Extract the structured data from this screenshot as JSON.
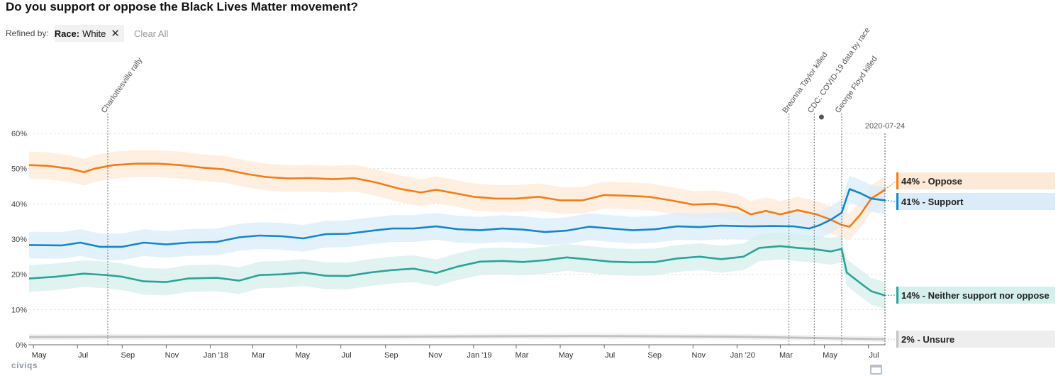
{
  "title": "Do you support or oppose the Black Lives Matter movement?",
  "refine": {
    "label": "Refined by:",
    "filter_key": "Race:",
    "filter_value": "White",
    "clear_label": "Clear All"
  },
  "brand": "civiqs",
  "chart_data": {
    "type": "line",
    "x_type": "date",
    "ylim": [
      0,
      60
    ],
    "yticks": [
      "0%",
      "10%",
      "20%",
      "30%",
      "40%",
      "50%",
      "60%"
    ],
    "xticks": [
      {
        "date": "2017-05-01",
        "label": "May"
      },
      {
        "date": "2017-07-01",
        "label": "Jul"
      },
      {
        "date": "2017-09-01",
        "label": "Sep"
      },
      {
        "date": "2017-11-01",
        "label": "Nov"
      },
      {
        "date": "2018-01-01",
        "label": "Jan '18"
      },
      {
        "date": "2018-03-01",
        "label": "Mar"
      },
      {
        "date": "2018-05-01",
        "label": "May"
      },
      {
        "date": "2018-07-01",
        "label": "Jul"
      },
      {
        "date": "2018-09-01",
        "label": "Sep"
      },
      {
        "date": "2018-11-01",
        "label": "Nov"
      },
      {
        "date": "2019-01-01",
        "label": "Jan '19"
      },
      {
        "date": "2019-03-01",
        "label": "Mar"
      },
      {
        "date": "2019-05-01",
        "label": "May"
      },
      {
        "date": "2019-07-01",
        "label": "Jul"
      },
      {
        "date": "2019-09-01",
        "label": "Sep"
      },
      {
        "date": "2019-11-01",
        "label": "Nov"
      },
      {
        "date": "2020-01-01",
        "label": "Jan '20"
      },
      {
        "date": "2020-03-01",
        "label": "Mar"
      },
      {
        "date": "2020-05-01",
        "label": "May"
      },
      {
        "date": "2020-07-01",
        "label": "Jul"
      }
    ],
    "annotations": [
      {
        "date": "2017-08-12",
        "label": "Charlottesville rally"
      },
      {
        "date": "2020-03-13",
        "label": "Breonna Taylor killed"
      },
      {
        "date": "2020-04-17",
        "label": "CDC: COVID-19 data by race"
      },
      {
        "date": "2020-05-25",
        "label": "George Floyd killed"
      }
    ],
    "current_date": "2020-07-24",
    "series": [
      {
        "name": "Oppose",
        "legend": "44% - Oppose",
        "color": "#f07d17",
        "band_color": "#fde9d7",
        "points": [
          [
            "2017-04-25",
            51
          ],
          [
            "2017-05-20",
            50.8
          ],
          [
            "2017-06-20",
            50
          ],
          [
            "2017-07-10",
            49
          ],
          [
            "2017-07-25",
            50
          ],
          [
            "2017-08-20",
            51
          ],
          [
            "2017-09-20",
            51.4
          ],
          [
            "2017-10-20",
            51.4
          ],
          [
            "2017-11-20",
            51
          ],
          [
            "2017-12-20",
            50.3
          ],
          [
            "2018-01-20",
            49.8
          ],
          [
            "2018-02-20",
            48.5
          ],
          [
            "2018-03-20",
            47.6
          ],
          [
            "2018-04-20",
            47.2
          ],
          [
            "2018-05-20",
            47.3
          ],
          [
            "2018-06-20",
            47
          ],
          [
            "2018-07-20",
            47.3
          ],
          [
            "2018-08-20",
            46
          ],
          [
            "2018-09-20",
            44.3
          ],
          [
            "2018-10-20",
            43.2
          ],
          [
            "2018-11-10",
            44
          ],
          [
            "2018-12-01",
            43.2
          ],
          [
            "2019-01-01",
            42
          ],
          [
            "2019-02-01",
            41.5
          ],
          [
            "2019-03-01",
            41.5
          ],
          [
            "2019-04-01",
            42
          ],
          [
            "2019-05-01",
            41
          ],
          [
            "2019-06-01",
            41
          ],
          [
            "2019-07-01",
            42.5
          ],
          [
            "2019-08-01",
            42.3
          ],
          [
            "2019-09-01",
            42
          ],
          [
            "2019-10-01",
            41
          ],
          [
            "2019-11-01",
            39.8
          ],
          [
            "2019-12-01",
            40
          ],
          [
            "2020-01-01",
            39
          ],
          [
            "2020-01-20",
            37
          ],
          [
            "2020-02-10",
            38
          ],
          [
            "2020-03-01",
            37
          ],
          [
            "2020-03-25",
            38.2
          ],
          [
            "2020-04-20",
            37
          ],
          [
            "2020-05-10",
            35.5
          ],
          [
            "2020-05-25",
            34
          ],
          [
            "2020-06-05",
            33.5
          ],
          [
            "2020-06-20",
            37
          ],
          [
            "2020-07-05",
            41.5
          ],
          [
            "2020-07-24",
            44
          ]
        ]
      },
      {
        "name": "Support",
        "legend": "41% - Support",
        "color": "#1785c8",
        "band_color": "#d9ecf8",
        "points": [
          [
            "2017-04-25",
            28.3
          ],
          [
            "2017-06-10",
            28.2
          ],
          [
            "2017-07-05",
            29
          ],
          [
            "2017-08-01",
            27.8
          ],
          [
            "2017-09-01",
            27.8
          ],
          [
            "2017-10-01",
            29
          ],
          [
            "2017-11-01",
            28.5
          ],
          [
            "2017-12-01",
            29
          ],
          [
            "2018-01-10",
            29.2
          ],
          [
            "2018-02-10",
            30.5
          ],
          [
            "2018-03-10",
            31
          ],
          [
            "2018-04-10",
            30.8
          ],
          [
            "2018-05-10",
            30.2
          ],
          [
            "2018-06-10",
            31.4
          ],
          [
            "2018-07-10",
            31.5
          ],
          [
            "2018-08-10",
            32.3
          ],
          [
            "2018-09-10",
            33
          ],
          [
            "2018-10-10",
            33
          ],
          [
            "2018-11-10",
            33.6
          ],
          [
            "2018-12-10",
            32.8
          ],
          [
            "2019-01-10",
            32.5
          ],
          [
            "2019-02-10",
            33
          ],
          [
            "2019-03-10",
            32.7
          ],
          [
            "2019-04-10",
            32
          ],
          [
            "2019-05-10",
            32.4
          ],
          [
            "2019-06-10",
            33.5
          ],
          [
            "2019-07-10",
            33
          ],
          [
            "2019-08-10",
            32.5
          ],
          [
            "2019-09-10",
            32.8
          ],
          [
            "2019-10-10",
            33.6
          ],
          [
            "2019-11-10",
            33.4
          ],
          [
            "2019-12-10",
            33.8
          ],
          [
            "2020-01-20",
            33.6
          ],
          [
            "2020-02-20",
            33.7
          ],
          [
            "2020-03-20",
            33.6
          ],
          [
            "2020-04-10",
            33
          ],
          [
            "2020-04-25",
            34
          ],
          [
            "2020-05-10",
            35.5
          ],
          [
            "2020-05-25",
            37.5
          ],
          [
            "2020-06-05",
            44.2
          ],
          [
            "2020-06-20",
            43
          ],
          [
            "2020-07-05",
            41.5
          ],
          [
            "2020-07-24",
            41
          ]
        ]
      },
      {
        "name": "Neither support nor oppose",
        "legend": "14% - Neither support nor oppose",
        "color": "#2aa39a",
        "band_color": "#d5efec",
        "points": [
          [
            "2017-04-25",
            18.8
          ],
          [
            "2017-06-01",
            19.3
          ],
          [
            "2017-07-10",
            20.2
          ],
          [
            "2017-08-10",
            19.8
          ],
          [
            "2017-09-01",
            19.3
          ],
          [
            "2017-10-01",
            18
          ],
          [
            "2017-11-01",
            17.8
          ],
          [
            "2017-12-01",
            18.8
          ],
          [
            "2018-01-10",
            19
          ],
          [
            "2018-02-10",
            18.2
          ],
          [
            "2018-03-10",
            19.8
          ],
          [
            "2018-04-10",
            20
          ],
          [
            "2018-05-10",
            20.5
          ],
          [
            "2018-06-10",
            19.6
          ],
          [
            "2018-07-10",
            19.5
          ],
          [
            "2018-08-10",
            20.5
          ],
          [
            "2018-09-10",
            21.2
          ],
          [
            "2018-10-10",
            21.6
          ],
          [
            "2018-11-10",
            20.4
          ],
          [
            "2018-12-10",
            22.2
          ],
          [
            "2019-01-10",
            23.6
          ],
          [
            "2019-02-10",
            23.8
          ],
          [
            "2019-03-10",
            23.5
          ],
          [
            "2019-04-10",
            24
          ],
          [
            "2019-05-10",
            24.8
          ],
          [
            "2019-06-10",
            24.2
          ],
          [
            "2019-07-10",
            23.6
          ],
          [
            "2019-08-10",
            23.4
          ],
          [
            "2019-09-10",
            23.5
          ],
          [
            "2019-10-10",
            24.5
          ],
          [
            "2019-11-10",
            25
          ],
          [
            "2019-12-10",
            24.3
          ],
          [
            "2020-01-10",
            25
          ],
          [
            "2020-02-01",
            27.5
          ],
          [
            "2020-03-01",
            28
          ],
          [
            "2020-03-25",
            27.5
          ],
          [
            "2020-04-15",
            27.2
          ],
          [
            "2020-05-10",
            26.5
          ],
          [
            "2020-05-25",
            27.2
          ],
          [
            "2020-06-01",
            20.5
          ],
          [
            "2020-06-20",
            17.5
          ],
          [
            "2020-07-05",
            15.2
          ],
          [
            "2020-07-24",
            14
          ]
        ]
      },
      {
        "name": "Unsure",
        "legend": "2% - Unsure",
        "color": "#c2c2c2",
        "band_color": "#eeeeee",
        "points": [
          [
            "2017-04-25",
            2.2
          ],
          [
            "2018-01-01",
            2.3
          ],
          [
            "2018-09-01",
            2.3
          ],
          [
            "2019-06-01",
            2.5
          ],
          [
            "2020-01-01",
            2.3
          ],
          [
            "2020-07-24",
            1.6
          ]
        ]
      }
    ]
  }
}
